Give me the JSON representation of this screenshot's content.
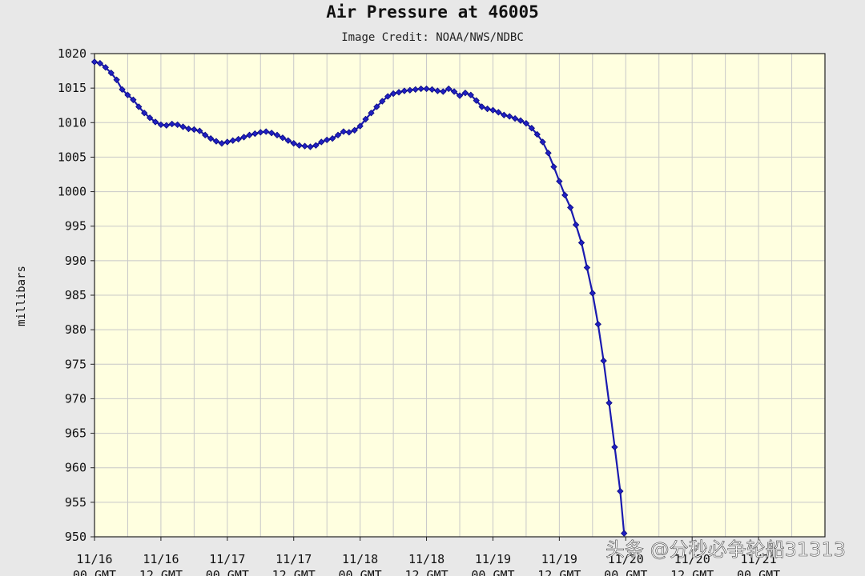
{
  "chart_data": {
    "type": "line",
    "title": "Air Pressure at 46005",
    "subtitle": "Image Credit: NOAA/NWS/NDBC",
    "ylabel": "millibars",
    "xlabel": "",
    "ylim": [
      950,
      1020
    ],
    "yticks": [
      1020,
      1015,
      1010,
      1005,
      1000,
      995,
      990,
      985,
      980,
      975,
      970,
      965,
      960,
      955,
      950
    ],
    "xlim_hours": [
      0,
      132
    ],
    "xticks": [
      {
        "hour": 0,
        "date": "11/16",
        "time": "00 GMT"
      },
      {
        "hour": 12,
        "date": "11/16",
        "time": "12 GMT"
      },
      {
        "hour": 24,
        "date": "11/17",
        "time": "00 GMT"
      },
      {
        "hour": 36,
        "date": "11/17",
        "time": "12 GMT"
      },
      {
        "hour": 48,
        "date": "11/18",
        "time": "00 GMT"
      },
      {
        "hour": 60,
        "date": "11/18",
        "time": "12 GMT"
      },
      {
        "hour": 72,
        "date": "11/19",
        "time": "00 GMT"
      },
      {
        "hour": 84,
        "date": "11/19",
        "time": "12 GMT"
      },
      {
        "hour": 96,
        "date": "11/20",
        "time": "00 GMT"
      },
      {
        "hour": 108,
        "date": "11/20",
        "time": "12 GMT"
      },
      {
        "hour": 120,
        "date": "11/21",
        "time": "00 GMT"
      }
    ],
    "grid": true,
    "series": [
      {
        "name": "",
        "points": [
          [
            0,
            1018.8
          ],
          [
            1,
            1018.6
          ],
          [
            2,
            1018.0
          ],
          [
            3,
            1017.2
          ],
          [
            4,
            1016.2
          ],
          [
            5,
            1014.8
          ],
          [
            6,
            1014.0
          ],
          [
            7,
            1013.3
          ],
          [
            8,
            1012.3
          ],
          [
            9,
            1011.4
          ],
          [
            10,
            1010.7
          ],
          [
            11,
            1010.1
          ],
          [
            12,
            1009.7
          ],
          [
            13,
            1009.6
          ],
          [
            14,
            1009.8
          ],
          [
            15,
            1009.7
          ],
          [
            16,
            1009.4
          ],
          [
            17,
            1009.1
          ],
          [
            18,
            1009.0
          ],
          [
            19,
            1008.8
          ],
          [
            20,
            1008.2
          ],
          [
            21,
            1007.7
          ],
          [
            22,
            1007.3
          ],
          [
            23,
            1007.0
          ],
          [
            24,
            1007.2
          ],
          [
            25,
            1007.4
          ],
          [
            26,
            1007.6
          ],
          [
            27,
            1007.9
          ],
          [
            28,
            1008.2
          ],
          [
            29,
            1008.4
          ],
          [
            30,
            1008.6
          ],
          [
            31,
            1008.7
          ],
          [
            32,
            1008.5
          ],
          [
            33,
            1008.2
          ],
          [
            34,
            1007.8
          ],
          [
            35,
            1007.4
          ],
          [
            36,
            1007.0
          ],
          [
            37,
            1006.7
          ],
          [
            38,
            1006.6
          ],
          [
            39,
            1006.5
          ],
          [
            40,
            1006.7
          ],
          [
            41,
            1007.2
          ],
          [
            42,
            1007.5
          ],
          [
            43,
            1007.7
          ],
          [
            44,
            1008.2
          ],
          [
            45,
            1008.7
          ],
          [
            46,
            1008.6
          ],
          [
            47,
            1008.9
          ],
          [
            48,
            1009.5
          ],
          [
            49,
            1010.5
          ],
          [
            50,
            1011.4
          ],
          [
            51,
            1012.3
          ],
          [
            52,
            1013.1
          ],
          [
            53,
            1013.8
          ],
          [
            54,
            1014.2
          ],
          [
            55,
            1014.4
          ],
          [
            56,
            1014.6
          ],
          [
            57,
            1014.7
          ],
          [
            58,
            1014.8
          ],
          [
            59,
            1014.9
          ],
          [
            60,
            1014.9
          ],
          [
            61,
            1014.8
          ],
          [
            62,
            1014.6
          ],
          [
            63,
            1014.5
          ],
          [
            64,
            1014.9
          ],
          [
            65,
            1014.5
          ],
          [
            66,
            1013.9
          ],
          [
            67,
            1014.3
          ],
          [
            68,
            1014.0
          ],
          [
            69,
            1013.2
          ],
          [
            70,
            1012.3
          ],
          [
            71,
            1012.0
          ],
          [
            72,
            1011.8
          ],
          [
            73,
            1011.5
          ],
          [
            74,
            1011.1
          ],
          [
            75,
            1010.9
          ],
          [
            76,
            1010.6
          ],
          [
            77,
            1010.3
          ],
          [
            78,
            1009.9
          ],
          [
            79,
            1009.2
          ],
          [
            80,
            1008.3
          ],
          [
            81,
            1007.2
          ],
          [
            82,
            1005.6
          ],
          [
            83,
            1003.6
          ],
          [
            84,
            1001.5
          ],
          [
            85,
            999.5
          ],
          [
            86,
            997.7
          ],
          [
            87,
            995.2
          ],
          [
            88,
            992.6
          ],
          [
            89,
            989.0
          ],
          [
            90,
            985.3
          ],
          [
            91,
            980.8
          ],
          [
            92,
            975.5
          ],
          [
            93,
            969.4
          ],
          [
            94,
            963.0
          ],
          [
            95,
            956.6
          ],
          [
            95.7,
            950.5
          ]
        ]
      }
    ]
  },
  "watermark": "头条 @分秒必争轮船31313"
}
